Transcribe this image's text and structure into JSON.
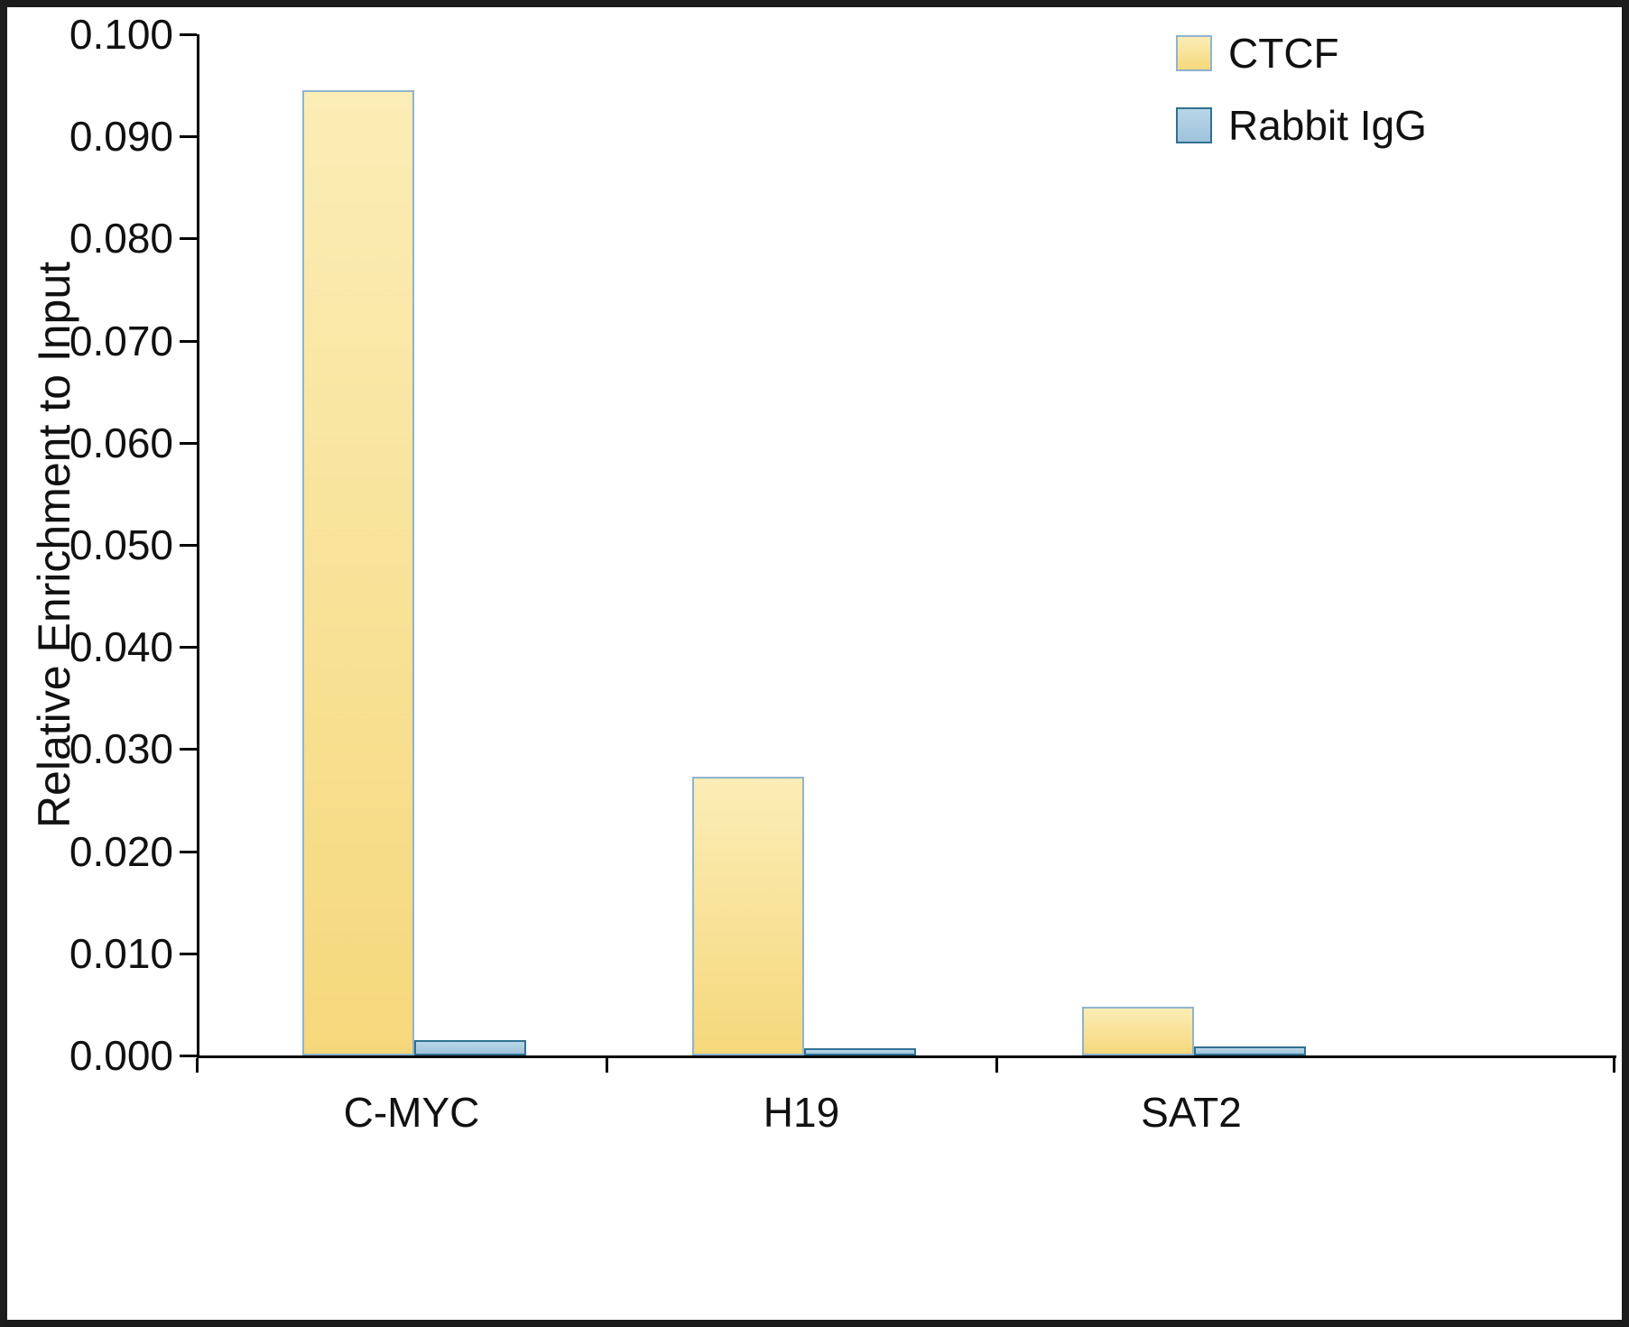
{
  "chart_data": {
    "type": "bar",
    "title": "",
    "xlabel": "",
    "ylabel": "Relative Enrichment to Input",
    "categories": [
      "C-MYC",
      "H19",
      "SAT2"
    ],
    "series": [
      {
        "name": "CTCF",
        "values": [
          0.0945,
          0.0273,
          0.0048
        ],
        "fill_top": "#FBEDB6",
        "fill_bottom": "#F6D87C",
        "border": "#8FB4CE"
      },
      {
        "name": "Rabbit IgG",
        "values": [
          0.0015,
          0.0007,
          0.0009
        ],
        "fill_top": "#B9D6E8",
        "fill_bottom": "#9EC3DB",
        "border": "#31708F"
      }
    ],
    "ylim": [
      0,
      0.1
    ],
    "ytick_step": 0.01,
    "ytick_format_decimals": 3,
    "grid": false,
    "legend_position": "top-right",
    "axis_color": "#000000"
  }
}
